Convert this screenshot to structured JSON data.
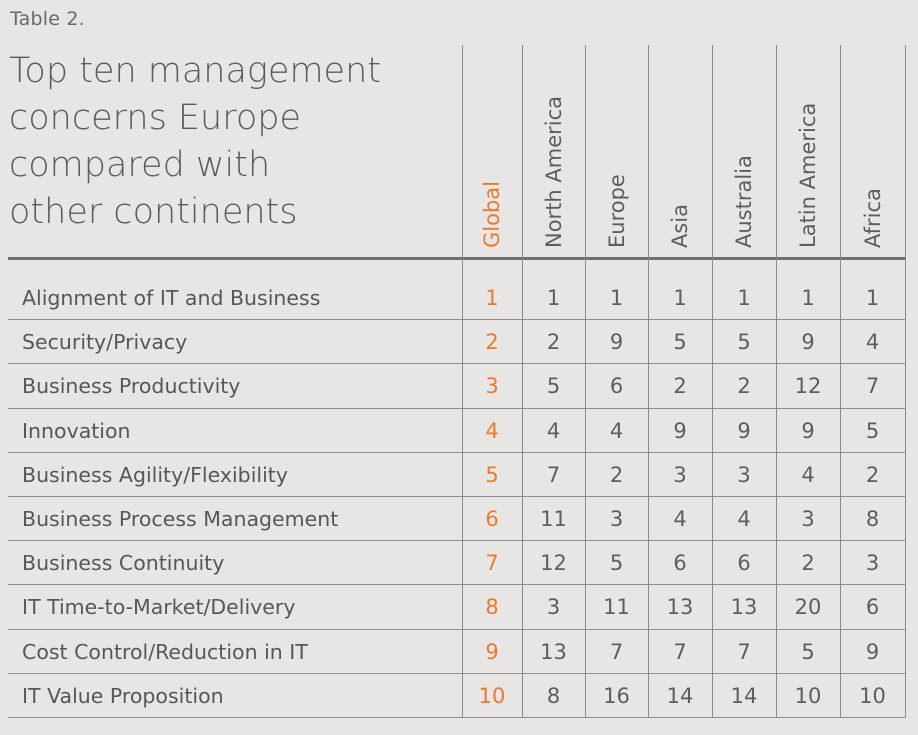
{
  "caption": "Table 2.",
  "title_lines": [
    "Top ten management",
    "concerns Europe",
    "compared with",
    "other continents"
  ],
  "columns": [
    "Global",
    "North America",
    "Europe",
    "Asia",
    "Australia",
    "Latin America",
    "Africa"
  ],
  "rows": [
    {
      "label": "Alignment of IT and Business",
      "values": [
        "1",
        "1",
        "1",
        "1",
        "1",
        "1",
        "1"
      ]
    },
    {
      "label": "Security/Privacy",
      "values": [
        "2",
        "2",
        "9",
        "5",
        "5",
        "9",
        "4"
      ]
    },
    {
      "label": "Business Productivity",
      "values": [
        "3",
        "5",
        "6",
        "2",
        "2",
        "12",
        "7"
      ]
    },
    {
      "label": "Innovation",
      "values": [
        "4",
        "4",
        "4",
        "9",
        "9",
        "9",
        "5"
      ]
    },
    {
      "label": "Business Agility/Flexibility",
      "values": [
        "5",
        "7",
        "2",
        "3",
        "3",
        "4",
        "2"
      ]
    },
    {
      "label": "Business Process Management",
      "values": [
        "6",
        "11",
        "3",
        "4",
        "4",
        "3",
        "8"
      ]
    },
    {
      "label": "Business Continuity",
      "values": [
        "7",
        "12",
        "5",
        "6",
        "6",
        "2",
        "3"
      ]
    },
    {
      "label": "IT Time-to-Market/Delivery",
      "values": [
        "8",
        "3",
        "11",
        "13",
        "13",
        "20",
        "6"
      ]
    },
    {
      "label": "Cost Control/Reduction in IT",
      "values": [
        "9",
        "13",
        "7",
        "7",
        "7",
        "5",
        "9"
      ]
    },
    {
      "label": "IT Value Proposition",
      "values": [
        "10",
        "8",
        "16",
        "14",
        "14",
        "10",
        "10"
      ]
    }
  ],
  "colors": {
    "global_accent": "#ec7a2e",
    "text": "#595959",
    "background": "#e7e6e4"
  }
}
